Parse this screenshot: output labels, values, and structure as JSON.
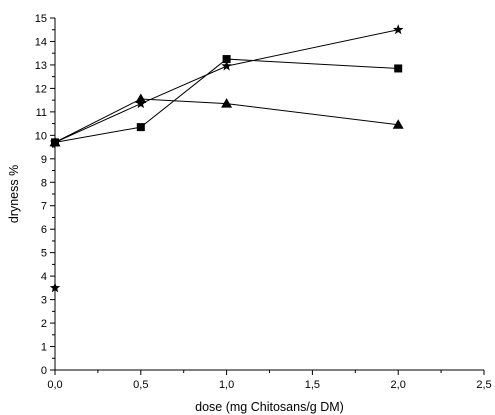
{
  "chart_data": {
    "type": "line",
    "title": "",
    "xlabel": "dose (mg Chitosans/g DM)",
    "ylabel": "dryness %",
    "xlim": [
      0,
      2.5
    ],
    "ylim": [
      0,
      15
    ],
    "xticks": [
      "0,0",
      "0,5",
      "1,0",
      "1,5",
      "2,0",
      "2,5"
    ],
    "yticks": [
      "0",
      "1",
      "2",
      "3",
      "4",
      "5",
      "6",
      "7",
      "8",
      "9",
      "10",
      "11",
      "12",
      "13",
      "14",
      "15"
    ],
    "grid": false,
    "legend": "none",
    "series": [
      {
        "marker": "square",
        "x": [
          0,
          0.5,
          1.0,
          2.0
        ],
        "y": [
          9.7,
          10.35,
          13.25,
          12.85
        ]
      },
      {
        "marker": "triangle",
        "x": [
          0,
          0.5,
          1.0,
          2.0
        ],
        "y": [
          9.7,
          11.55,
          11.35,
          10.45
        ]
      },
      {
        "marker": "star",
        "x": [
          0,
          0.5,
          1.0,
          2.0
        ],
        "y": [
          9.7,
          11.35,
          12.95,
          14.5
        ]
      }
    ],
    "isolated_points": [
      {
        "marker": "star",
        "x": 0,
        "y": 3.5
      }
    ],
    "colors": {
      "line": "#000000",
      "marker": "#000000"
    }
  }
}
